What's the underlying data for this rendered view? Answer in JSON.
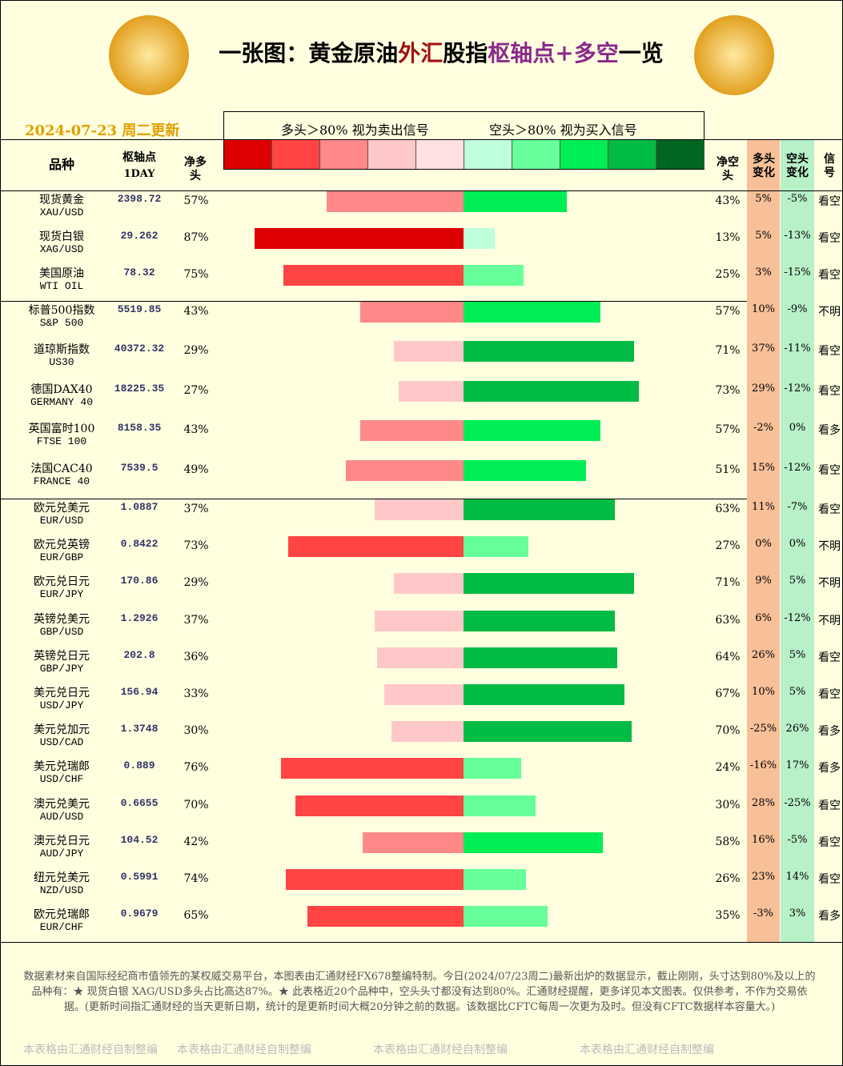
{
  "header": {
    "title_parts": [
      {
        "text": "一张图：黄金原油",
        "color": "#000000"
      },
      {
        "text": "外汇",
        "color": "#a01010"
      },
      {
        "text": "股指",
        "color": "#000000"
      },
      {
        "text": "枢轴点+多空",
        "color": "#8a2a8a"
      },
      {
        "text": "一览",
        "color": "#000000"
      }
    ],
    "date": "2024-07-23 周二更新",
    "legend_left": "多头＞80% 视为卖出信号",
    "legend_right": "空头＞80% 视为买入信号",
    "legend_colors": [
      "#dd0000",
      "#ff4444",
      "#ff8888",
      "#ffc8c8",
      "#ffe0e0",
      "#c0ffdc",
      "#66ff99",
      "#00ee55",
      "#00bb44",
      "#006622"
    ]
  },
  "table": {
    "columns": [
      "品种",
      "枢轴点",
      "1DAY",
      "净多头",
      "净空头",
      "多头变化",
      "空头变化",
      "信号"
    ],
    "sections": [
      {
        "rows": [
          [
            "现货黄金",
            "XAU/USD",
            "2398.72",
            "57%",
            "43%",
            "5%",
            "-5%",
            "看空"
          ],
          [
            "现货白银",
            "XAG/USD",
            "29.262",
            "87%",
            "13%",
            "5%",
            "-13%",
            "看空"
          ],
          [
            "美国原油",
            "WTI OIL",
            "78.32",
            "75%",
            "25%",
            "3%",
            "-15%",
            "看空"
          ]
        ]
      },
      {
        "rows": [
          [
            "标普500指数",
            "S&P 500",
            "5519.85",
            "43%",
            "57%",
            "10%",
            "-9%",
            "不明"
          ],
          [
            "道琼斯指数",
            "US30",
            "40372.32",
            "29%",
            "71%",
            "37%",
            "-11%",
            "看空"
          ],
          [
            "德国DAX40",
            "GERMANY 40",
            "18225.35",
            "27%",
            "73%",
            "29%",
            "-12%",
            "看空"
          ],
          [
            "英国富时100",
            "FTSE 100",
            "8158.35",
            "43%",
            "57%",
            "-2%",
            "0%",
            "看多"
          ],
          [
            "法国CAC40",
            "FRANCE 40",
            "7539.5",
            "49%",
            "51%",
            "15%",
            "-12%",
            "看空"
          ]
        ]
      },
      {
        "rows": [
          [
            "欧元兑美元",
            "EUR/USD",
            "1.0887",
            "37%",
            "63%",
            "11%",
            "-7%",
            "看空"
          ],
          [
            "欧元兑英镑",
            "EUR/GBP",
            "0.8422",
            "73%",
            "27%",
            "0%",
            "0%",
            "不明"
          ],
          [
            "欧元兑日元",
            "EUR/JPY",
            "170.86",
            "29%",
            "71%",
            "9%",
            "5%",
            "不明"
          ],
          [
            "英镑兑美元",
            "GBP/USD",
            "1.2926",
            "37%",
            "63%",
            "6%",
            "-12%",
            "不明"
          ],
          [
            "英镑兑日元",
            "GBP/JPY",
            "202.8",
            "36%",
            "64%",
            "26%",
            "5%",
            "看空"
          ],
          [
            "美元兑日元",
            "USD/JPY",
            "156.94",
            "33%",
            "67%",
            "10%",
            "5%",
            "看空"
          ],
          [
            "美元兑加元",
            "USD/CAD",
            "1.3748",
            "30%",
            "70%",
            "-25%",
            "26%",
            "看多"
          ],
          [
            "美元兑瑞郎",
            "USD/CHF",
            "0.889",
            "76%",
            "24%",
            "-16%",
            "17%",
            "看多"
          ],
          [
            "澳元兑美元",
            "AUD/USD",
            "0.6655",
            "70%",
            "30%",
            "28%",
            "-25%",
            "看空"
          ],
          [
            "澳元兑日元",
            "AUD/JPY",
            "104.52",
            "42%",
            "58%",
            "16%",
            "-5%",
            "看空"
          ],
          [
            "纽元兑美元",
            "NZD/USD",
            "0.5991",
            "74%",
            "26%",
            "23%",
            "14%",
            "看空"
          ],
          [
            "欧元兑瑞郎",
            "EUR/CHF",
            "0.9679",
            "65%",
            "35%",
            "-3%",
            "3%",
            "看多"
          ]
        ]
      }
    ]
  },
  "footer": {
    "note": "数据素材来自国际经纪商市值领先的某权威交易平台，本图表由汇通财经FX678整编特制。今日(2024/07/23周二)最新出炉的数据显示，截止刚刚，头寸达到80%及以上的品种有：★ 现货白银 XAG/USD多头占比高达87%。★ 此表格近20个品种中，空头头寸都没有达到80%。汇通财经提醒，更多详见本文图表。仅供参考，不作为交易依据。(更新时间指汇通财经的当天更新日期，统计的是更新时间大概20分钟之前的数据。该数据比CFTC每周一次更为及时。但没有CFTC数据样本容量大。)",
    "watermarks": [
      "本表格由汇通财经自制整编",
      "本表格由汇通财经自制整编",
      "本表格由汇通财经自制整编",
      "本表格由汇通财经自制整编"
    ]
  }
}
